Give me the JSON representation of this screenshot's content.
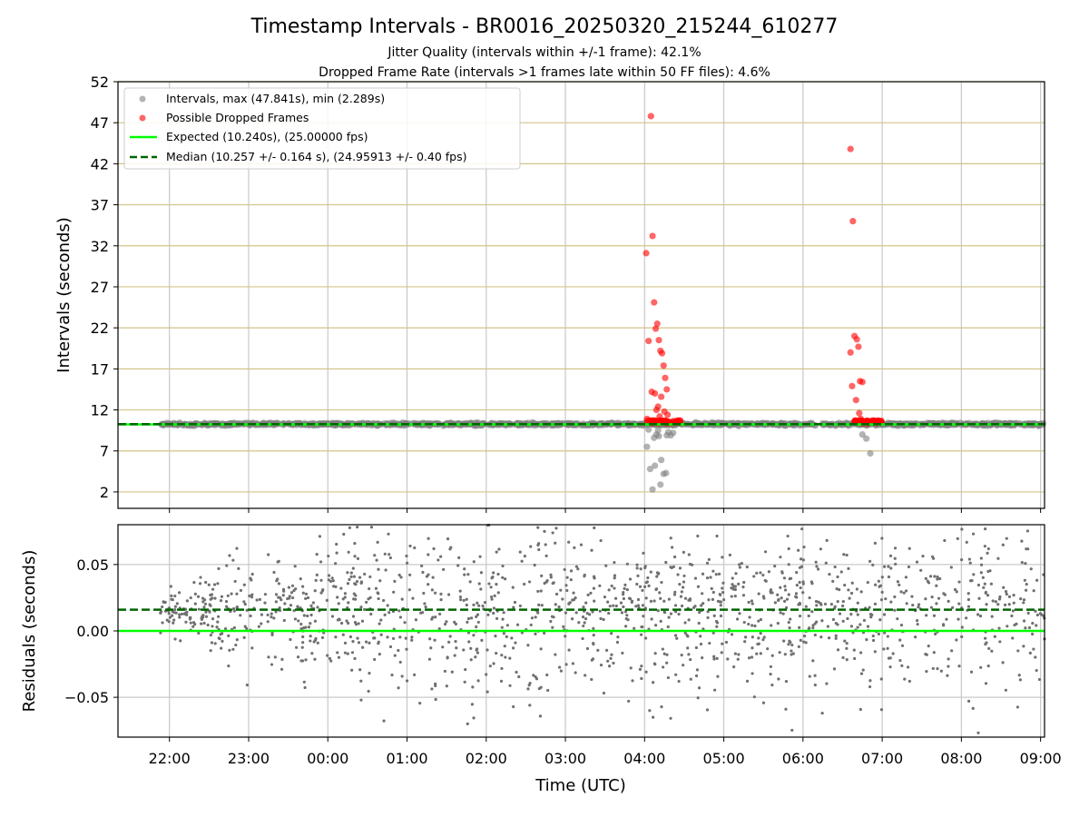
{
  "chart_data": [
    {
      "type": "scatter",
      "title": "Timestamp Intervals - BR0016_20250320_215244_610277",
      "subtitles": [
        "Jitter Quality (intervals within +/-1 frame): 42.1%",
        "Dropped Frame Rate (intervals >1 frames late within 50 FF files): 4.6%"
      ],
      "ylabel": "Intervals (seconds)",
      "ylim": [
        0,
        52
      ],
      "yticks": [
        "2",
        "7",
        "12",
        "17",
        "22",
        "27",
        "32",
        "37",
        "42",
        "47",
        "52"
      ],
      "grid": true,
      "legend_position": "top-left",
      "legend": [
        "Intervals, max (47.841s), min (2.289s)",
        "Possible Dropped Frames",
        "Expected (10.240s), (25.00000 fps)",
        "Median (10.257 +/- 0.164 s), (24.95913 +/- 0.40 fps)"
      ],
      "expected_interval": 10.24,
      "median_interval": 10.257,
      "colors": {
        "intervals": "#808080",
        "dropped": "#ff0000",
        "expected": "#00ff00",
        "median": "#006400"
      },
      "series": [
        {
          "name": "Intervals, max (47.841s), min (2.289s)",
          "x_hours": [
            4.03,
            4.07,
            4.1,
            4.13,
            4.15,
            4.18,
            4.21,
            4.24,
            4.27,
            4.3,
            4.33,
            4.36,
            6.75,
            6.8,
            6.85,
            4.05,
            4.12,
            4.2,
            4.28,
            4.17
          ],
          "y": [
            7.5,
            4.8,
            2.3,
            5.2,
            9.0,
            8.8,
            5.9,
            4.2,
            4.3,
            9.3,
            8.9,
            9.2,
            9.0,
            8.5,
            6.7,
            9.6,
            8.6,
            2.9,
            8.9,
            9.5
          ]
        },
        {
          "name": "Possible Dropped Frames",
          "x_hours": [
            4.02,
            4.08,
            4.1,
            4.12,
            4.14,
            4.16,
            4.18,
            4.2,
            4.22,
            4.24,
            4.26,
            4.28,
            4.05,
            4.09,
            4.13,
            4.17,
            4.21,
            4.25,
            4.29,
            4.03,
            4.15,
            4.19,
            6.6,
            6.63,
            6.65,
            6.68,
            6.7,
            6.72,
            6.75,
            6.6,
            6.62,
            6.67,
            6.71,
            6.73
          ],
          "y": [
            31.1,
            47.8,
            33.2,
            25.1,
            21.9,
            22.5,
            20.5,
            19.2,
            18.9,
            17.4,
            15.9,
            14.5,
            20.4,
            14.2,
            14.0,
            12.4,
            13.6,
            11.8,
            11.4,
            10.9,
            12.0,
            11.2,
            43.8,
            35.0,
            21.0,
            20.6,
            19.7,
            15.5,
            15.4,
            19.0,
            14.9,
            13.2,
            11.6,
            10.9
          ]
        }
      ]
    },
    {
      "type": "scatter",
      "ylabel": "Residuals (seconds)",
      "xlabel": "Time (UTC)",
      "ylim": [
        -0.08,
        0.08
      ],
      "yticks": [
        "0.05",
        "0.00",
        "−0.05"
      ],
      "xticks": [
        "22:00",
        "23:00",
        "00:00",
        "01:00",
        "02:00",
        "03:00",
        "04:00",
        "05:00",
        "06:00",
        "07:00",
        "08:00",
        "09:00"
      ],
      "x_range_hours": [
        21.35,
        33.05
      ],
      "expected_residual": 0.0,
      "median_residual": 0.016,
      "grid": true,
      "note": ""
    }
  ]
}
